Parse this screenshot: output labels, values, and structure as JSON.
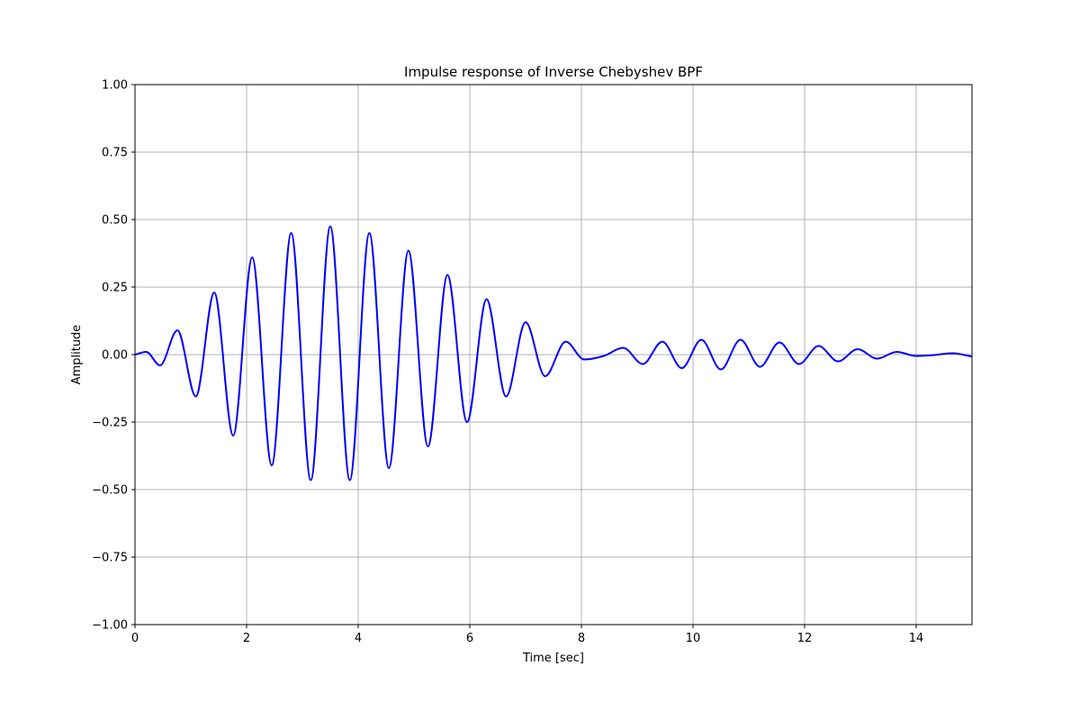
{
  "chart_data": {
    "type": "line",
    "title": "Impulse response of Inverse Chebyshev BPF",
    "xlabel": "Time  [sec]",
    "ylabel": "Amplitude",
    "xlim": [
      0,
      15
    ],
    "ylim": [
      -1.0,
      1.0
    ],
    "grid": true,
    "x_ticks": [
      0,
      2,
      4,
      6,
      8,
      10,
      12,
      14
    ],
    "x_tick_labels": [
      "0",
      "2",
      "4",
      "6",
      "8",
      "10",
      "12",
      "14"
    ],
    "y_ticks": [
      -1.0,
      -0.75,
      -0.5,
      -0.25,
      0.0,
      0.25,
      0.5,
      0.75,
      1.0
    ],
    "y_tick_labels": [
      "−1.00",
      "−0.75",
      "−0.50",
      "−0.25",
      "0.00",
      "0.25",
      "0.50",
      "0.75",
      "1.00"
    ],
    "series": [
      {
        "color": "#0000ff",
        "x": [
          0,
          0.2,
          0.45,
          0.76,
          1.09,
          1.42,
          1.76,
          2.1,
          2.45,
          2.8,
          3.15,
          3.5,
          3.85,
          4.2,
          4.55,
          4.9,
          5.25,
          5.6,
          5.95,
          6.3,
          6.65,
          7.0,
          7.35,
          7.72,
          8.05,
          8.4,
          8.75,
          9.1,
          9.45,
          9.8,
          10.15,
          10.5,
          10.85,
          11.2,
          11.55,
          11.9,
          12.25,
          12.6,
          12.95,
          13.3,
          13.65,
          14.0,
          14.3,
          14.65,
          15.0
        ],
        "y": [
          0.0,
          0.01,
          -0.04,
          0.09,
          -0.155,
          0.23,
          -0.3,
          0.36,
          -0.41,
          0.45,
          -0.465,
          0.475,
          -0.465,
          0.45,
          -0.42,
          0.385,
          -0.34,
          0.295,
          -0.25,
          0.205,
          -0.155,
          0.12,
          -0.08,
          0.048,
          -0.018,
          -0.005,
          0.025,
          -0.035,
          0.048,
          -0.05,
          0.055,
          -0.055,
          0.055,
          -0.045,
          0.045,
          -0.035,
          0.032,
          -0.025,
          0.02,
          -0.015,
          0.01,
          -0.005,
          -0.002,
          0.005,
          -0.007
        ]
      }
    ]
  }
}
